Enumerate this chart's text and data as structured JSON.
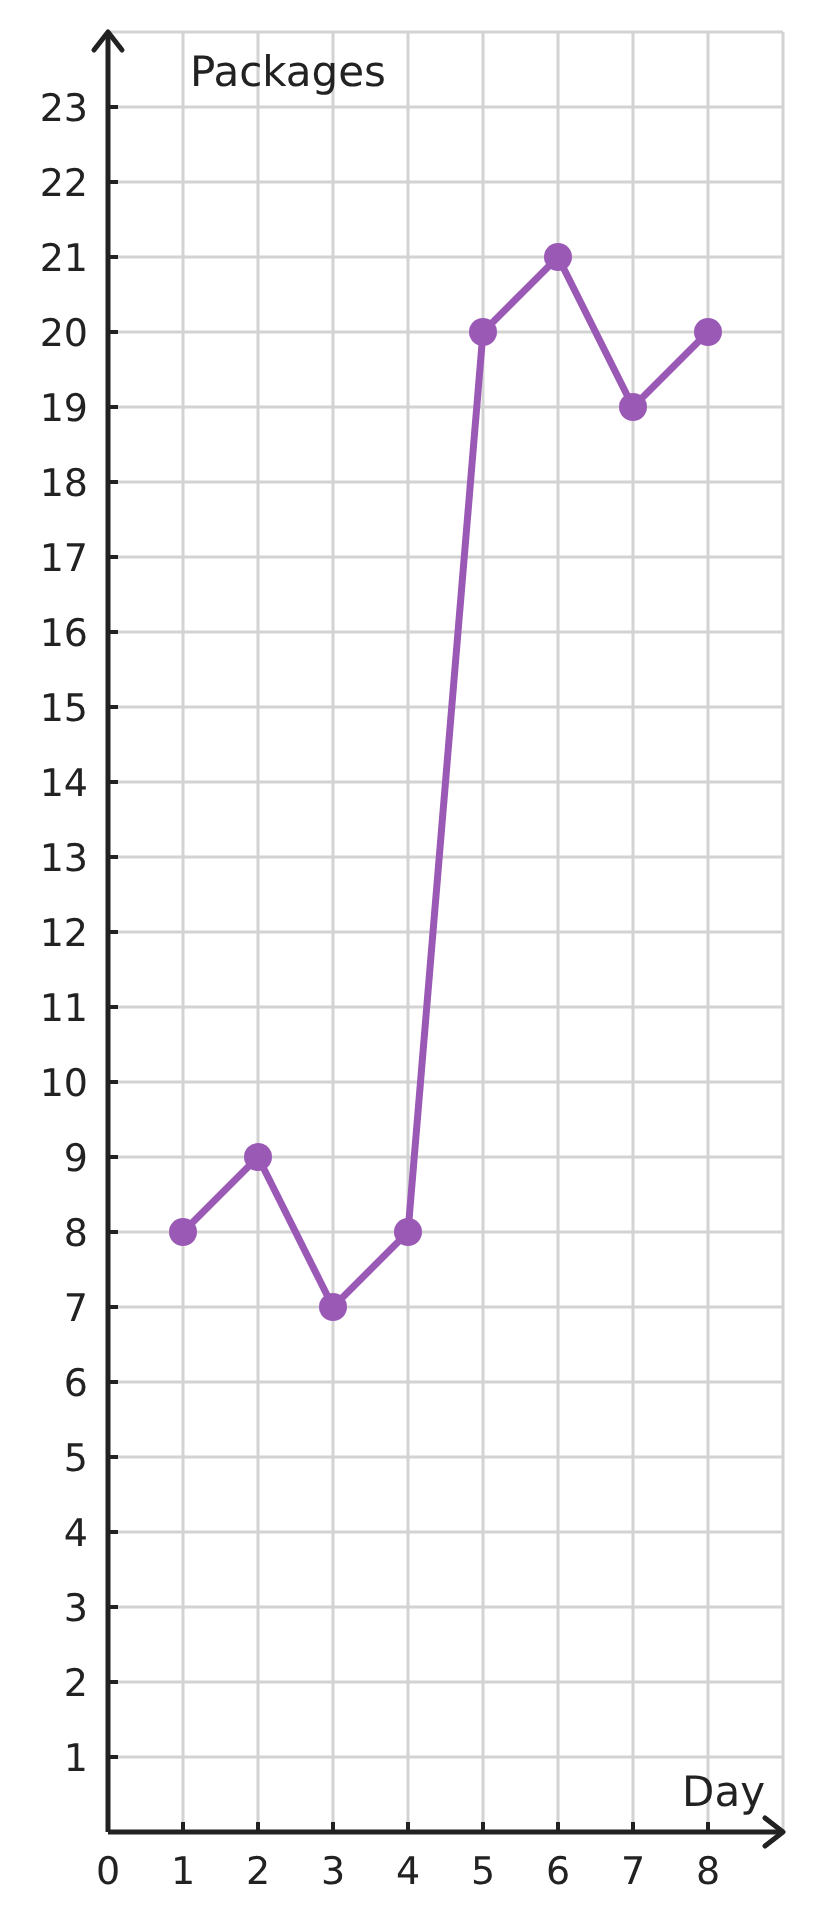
{
  "chart_data": {
    "type": "line",
    "xlabel": "Day",
    "ylabel": "Packages",
    "x": [
      1,
      2,
      3,
      4,
      5,
      6,
      7,
      8
    ],
    "series": [
      {
        "color": "#9b59b6",
        "values": [
          8,
          9,
          7,
          8,
          20,
          21,
          19,
          20
        ]
      }
    ],
    "xlim": [
      0,
      9
    ],
    "xticks": [
      0,
      1,
      2,
      3,
      4,
      5,
      6,
      7,
      8
    ],
    "ylim": [
      0,
      24
    ],
    "yticks": [
      1,
      2,
      3,
      4,
      5,
      6,
      7,
      8,
      9,
      10,
      11,
      12,
      13,
      14,
      15,
      16,
      17,
      18,
      19,
      20,
      21,
      22,
      23
    ],
    "grid": true,
    "marker": "circle",
    "line_style": "solid"
  }
}
